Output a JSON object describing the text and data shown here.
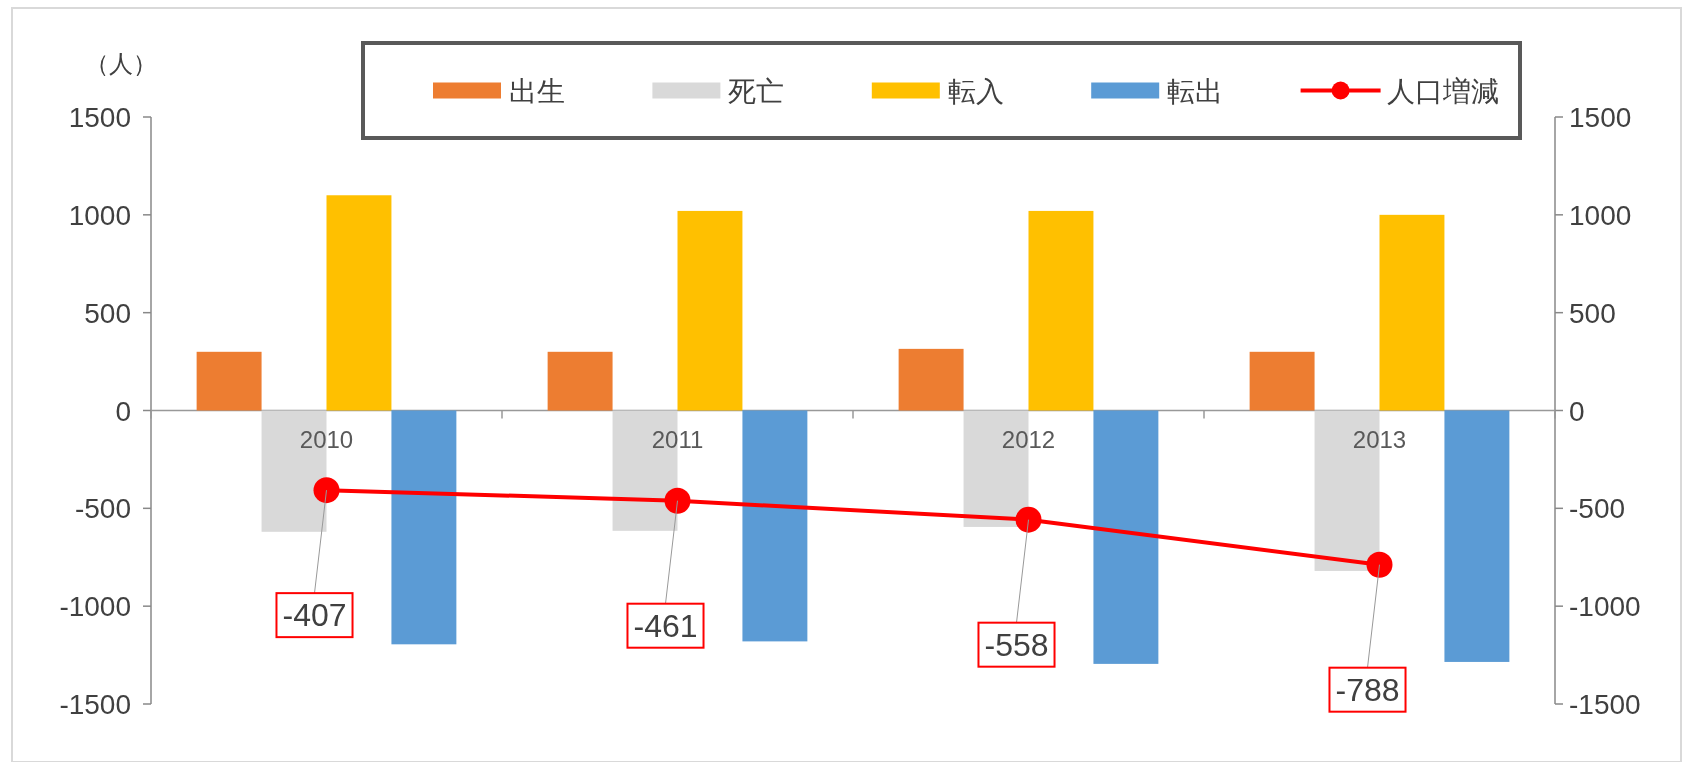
{
  "chart_data": {
    "type": "bar",
    "ylabel": "（人）",
    "categories": [
      "2010",
      "2011",
      "2012",
      "2013"
    ],
    "series": [
      {
        "name": "出生",
        "color": "#ed7d31",
        "values": [
          300,
          300,
          315,
          300
        ]
      },
      {
        "name": "死亡",
        "color": "#d9d9d9",
        "values": [
          -620,
          -615,
          -595,
          -820
        ]
      },
      {
        "name": "転入",
        "color": "#ffc000",
        "values": [
          1100,
          1020,
          1020,
          1000
        ]
      },
      {
        "name": "転出",
        "color": "#5b9bd5",
        "values": [
          -1195,
          -1180,
          -1295,
          -1285
        ]
      },
      {
        "name": "人口増減",
        "type": "line",
        "color": "#ff0000",
        "marker": "circle",
        "values": [
          -407,
          -461,
          -558,
          -788
        ],
        "value_labels": [
          "-407",
          "-461",
          "-558",
          "-788"
        ]
      }
    ],
    "ylim": [
      -1500,
      1500
    ],
    "yticks": [
      -1500,
      -1000,
      -500,
      0,
      500,
      1000,
      1500
    ],
    "y2lim": [
      -1500,
      1500
    ],
    "y2ticks": [
      -1500,
      -1000,
      -500,
      0,
      500,
      1000,
      1500
    ],
    "grid": false,
    "legend": "top"
  }
}
